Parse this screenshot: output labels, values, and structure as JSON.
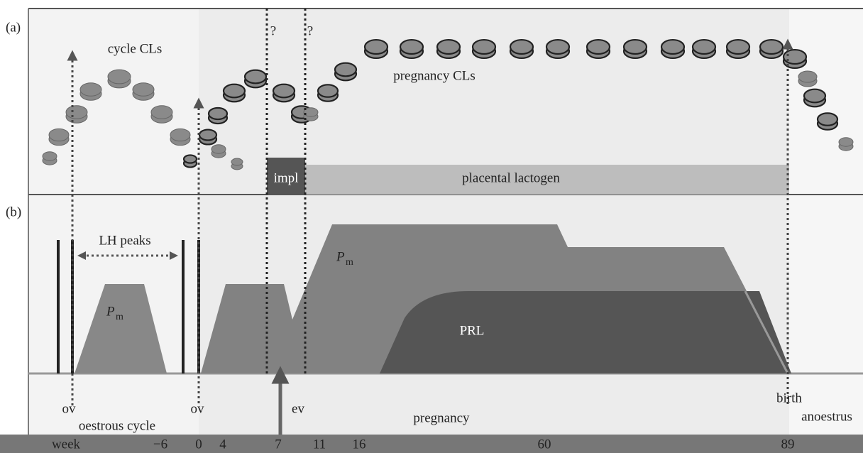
{
  "panel_a": {
    "label": "(a)",
    "cycle_label": "cycle CLs",
    "pregnancy_label": "pregnancy CLs",
    "question_1": "?",
    "question_2": "?",
    "impl": "impl",
    "placental": "placental lactogen"
  },
  "panel_b": {
    "label": "(b)",
    "lh_peaks": "LH peaks",
    "pm_symbol": "P",
    "pm_subscript": "m",
    "prl": "PRL",
    "ov": "ov",
    "oestrous": "oestrous cycle",
    "ev": "ev",
    "pregnancy": "pregnancy",
    "birth": "birth",
    "anoestrus": "anoestrus"
  },
  "timeline": {
    "labels": [
      "week",
      "−6",
      "0",
      "4",
      "7",
      "11",
      "16",
      "60",
      "89"
    ]
  }
}
